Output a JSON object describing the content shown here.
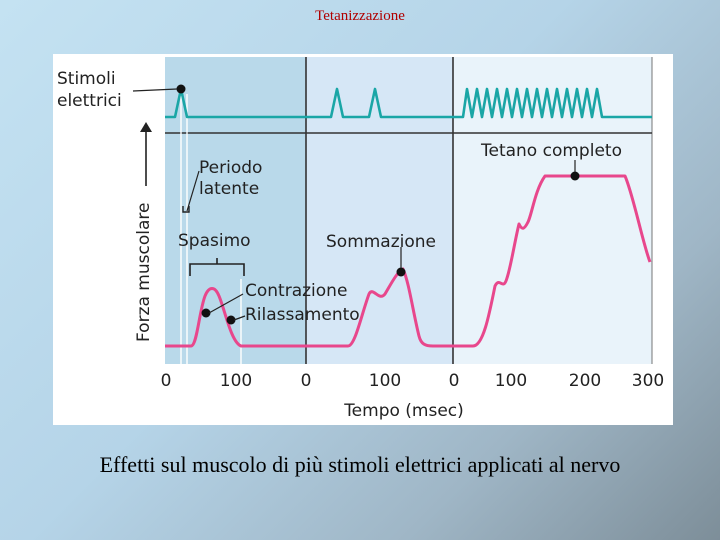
{
  "slide_title": "Tetanizzazione",
  "caption": "Effetti sul muscolo di più stimoli elettrici applicati al nervo",
  "figure": {
    "stimuli_label_line1": "Stimoli",
    "stimuli_label_line2": "elettrici",
    "y_axis_label": "Forza muscolare",
    "x_axis_label": "Tempo (msec)",
    "annotations": {
      "latent_line1": "Periodo",
      "latent_line2": "latente",
      "twitch": "Spasimo",
      "contraction": "Contrazione",
      "relaxation": "Rilassamento",
      "summation": "Sommazione",
      "complete_tetanus": "Tetano completo"
    },
    "panels": [
      {
        "ticks": [
          "0",
          "100"
        ]
      },
      {
        "ticks": [
          "0",
          "100"
        ]
      },
      {
        "ticks": [
          "0",
          "100",
          "200",
          "300"
        ]
      }
    ],
    "colors": {
      "stimulus_trace": "#1aa6a6",
      "force_trace": "#e8478c",
      "panel1_bg": "#b9d9ea",
      "panel2_bg": "#d6e7f6",
      "panel3_bg": "#e9f3fa",
      "divider": "#333333"
    }
  }
}
